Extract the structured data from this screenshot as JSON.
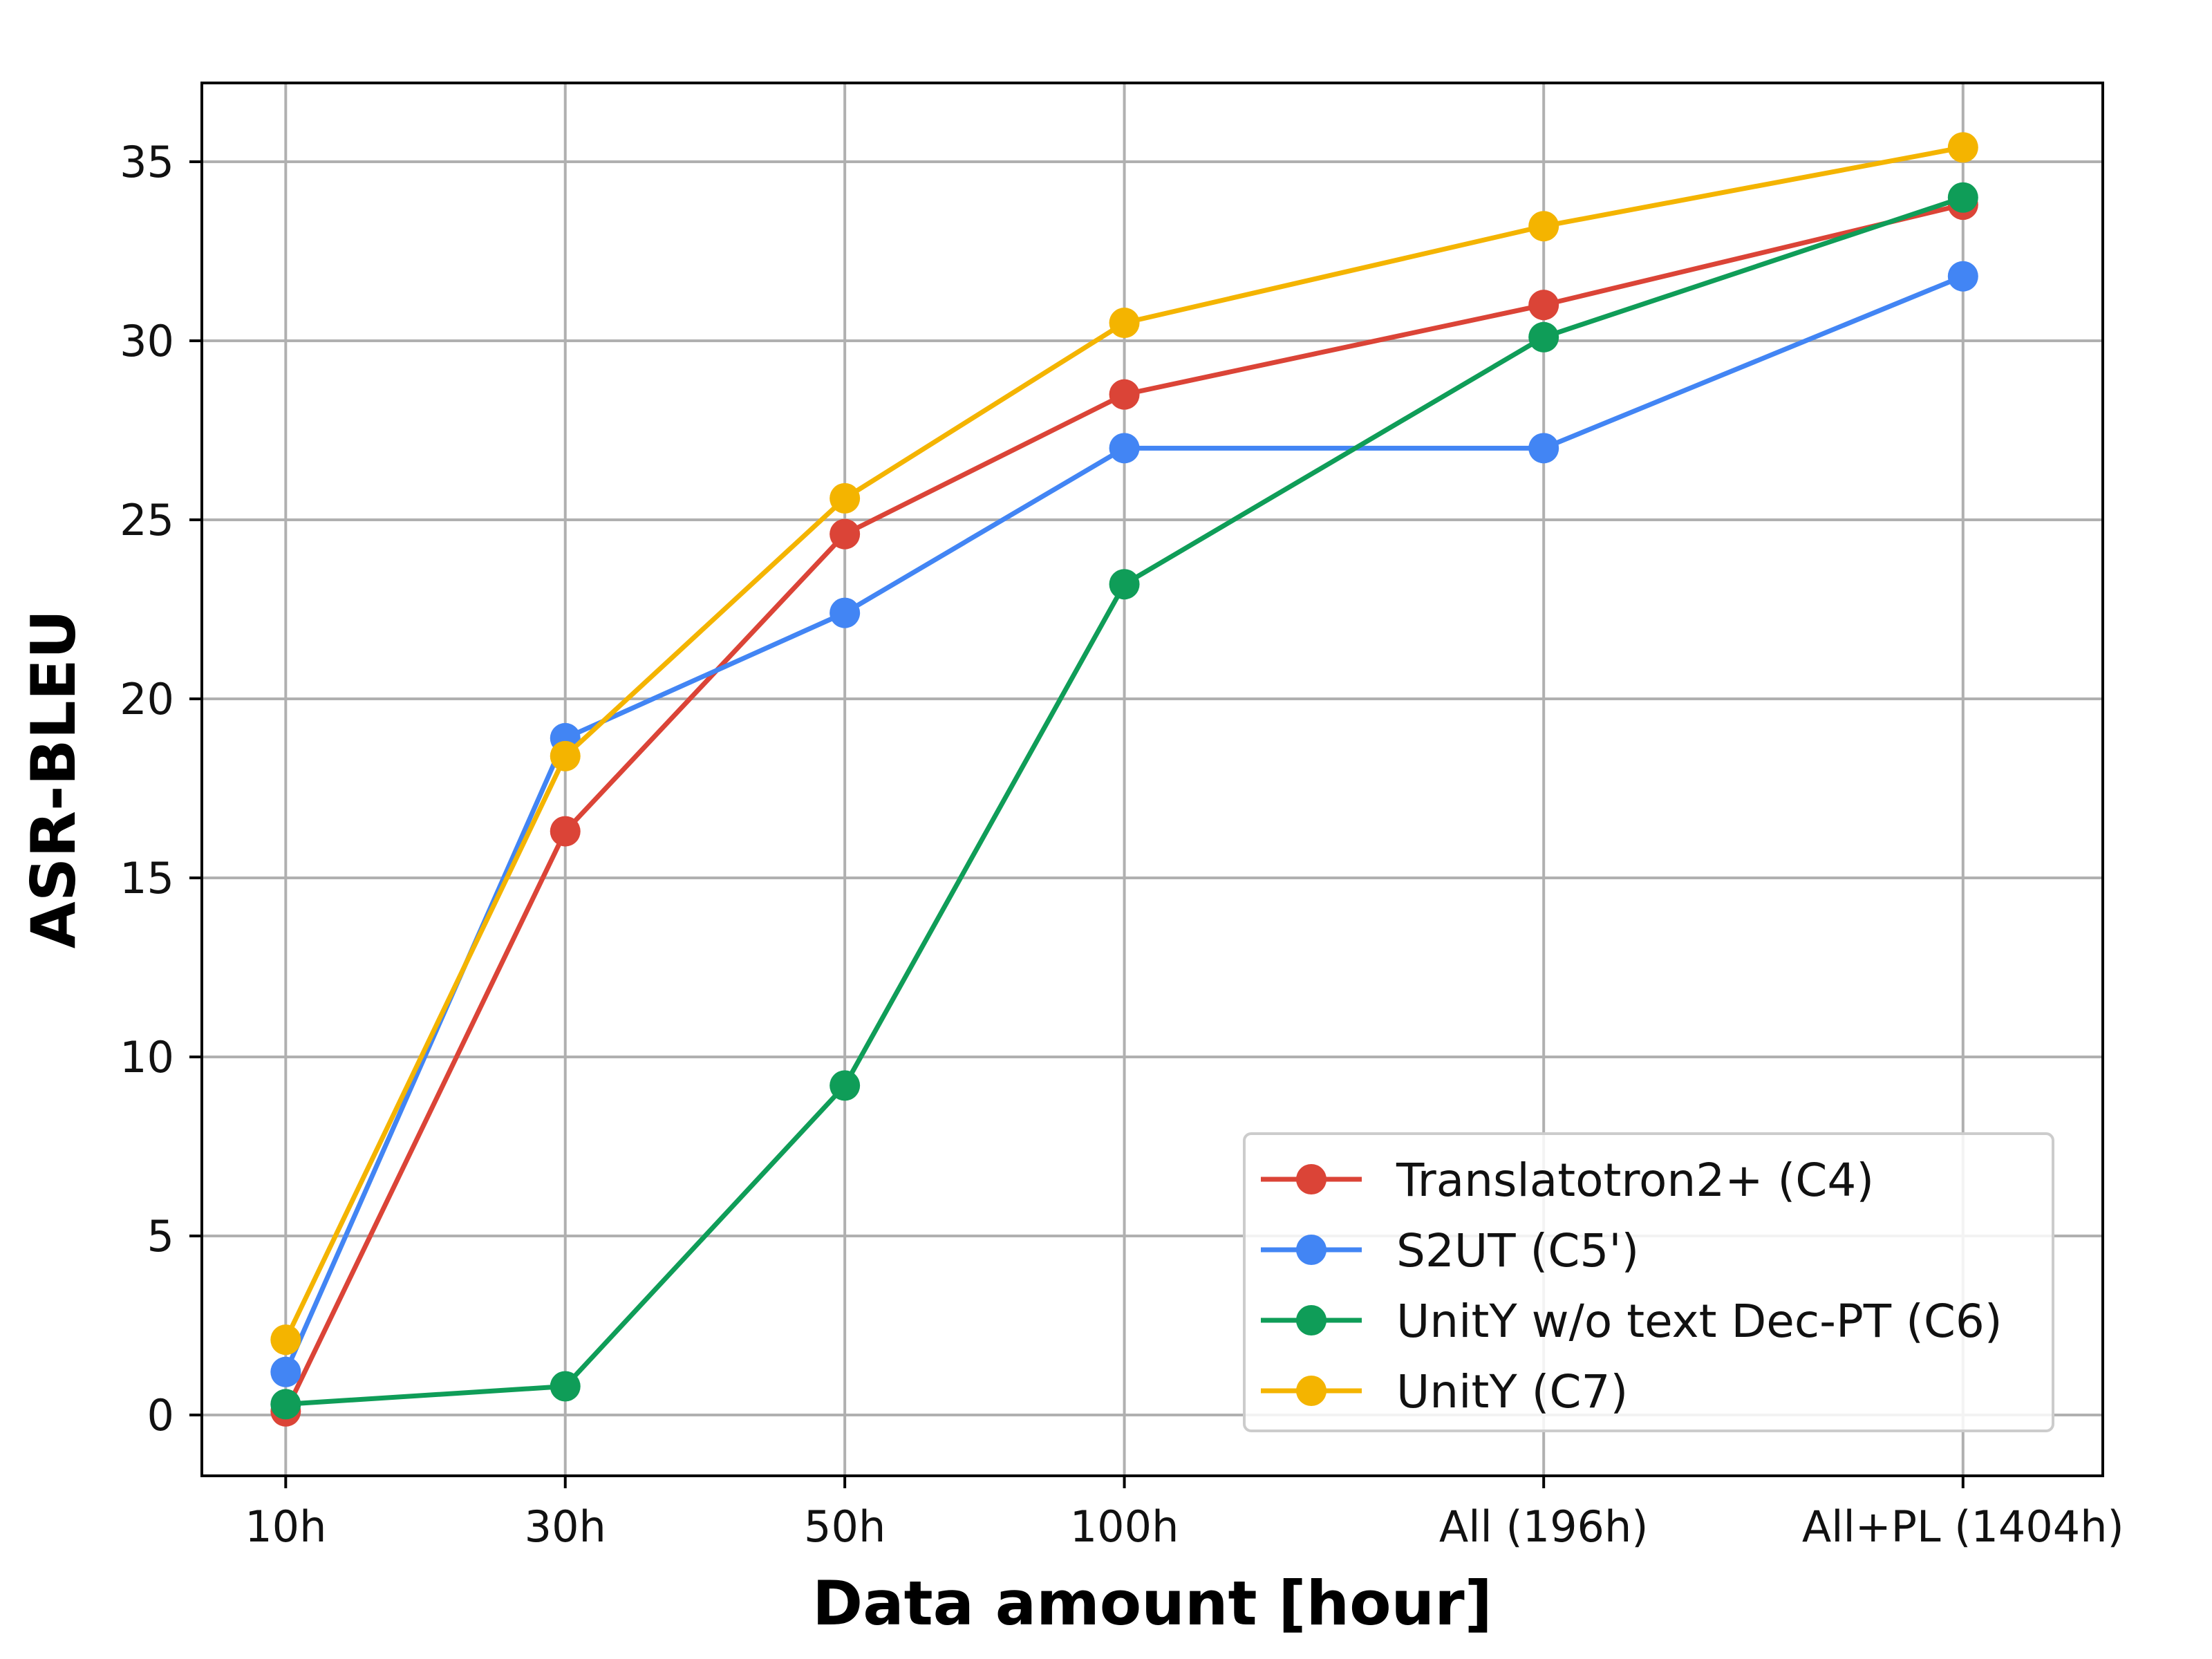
{
  "chart_data": {
    "type": "line",
    "xlabel": "Data amount [hour]",
    "ylabel": "ASR-BLEU",
    "categories": [
      "10h",
      "30h",
      "50h",
      "100h",
      "All (196h)",
      "All+PL (1404h)"
    ],
    "x": [
      10,
      30,
      50,
      70,
      100,
      130
    ],
    "ylim": [
      -1.7,
      37.2
    ],
    "yticks": [
      0,
      5,
      10,
      15,
      20,
      25,
      30,
      35
    ],
    "grid": true,
    "legend_position": "lower-right",
    "series": [
      {
        "name": "Translatotron2+ (C4)",
        "color": "#db4437",
        "values": [
          0.1,
          16.3,
          24.6,
          28.5,
          31.0,
          33.8
        ]
      },
      {
        "name": "S2UT (C5')",
        "color": "#4285f4",
        "values": [
          1.2,
          18.9,
          22.4,
          27.0,
          27.0,
          31.8
        ]
      },
      {
        "name": "UnitY w/o text Dec-PT (C6)",
        "color": "#0f9d58",
        "values": [
          0.3,
          0.8,
          9.2,
          23.2,
          30.1,
          34.0
        ]
      },
      {
        "name": "UnitY (C7)",
        "color": "#f4b400",
        "values": [
          2.1,
          18.4,
          25.6,
          30.5,
          33.2,
          35.4
        ]
      }
    ]
  }
}
